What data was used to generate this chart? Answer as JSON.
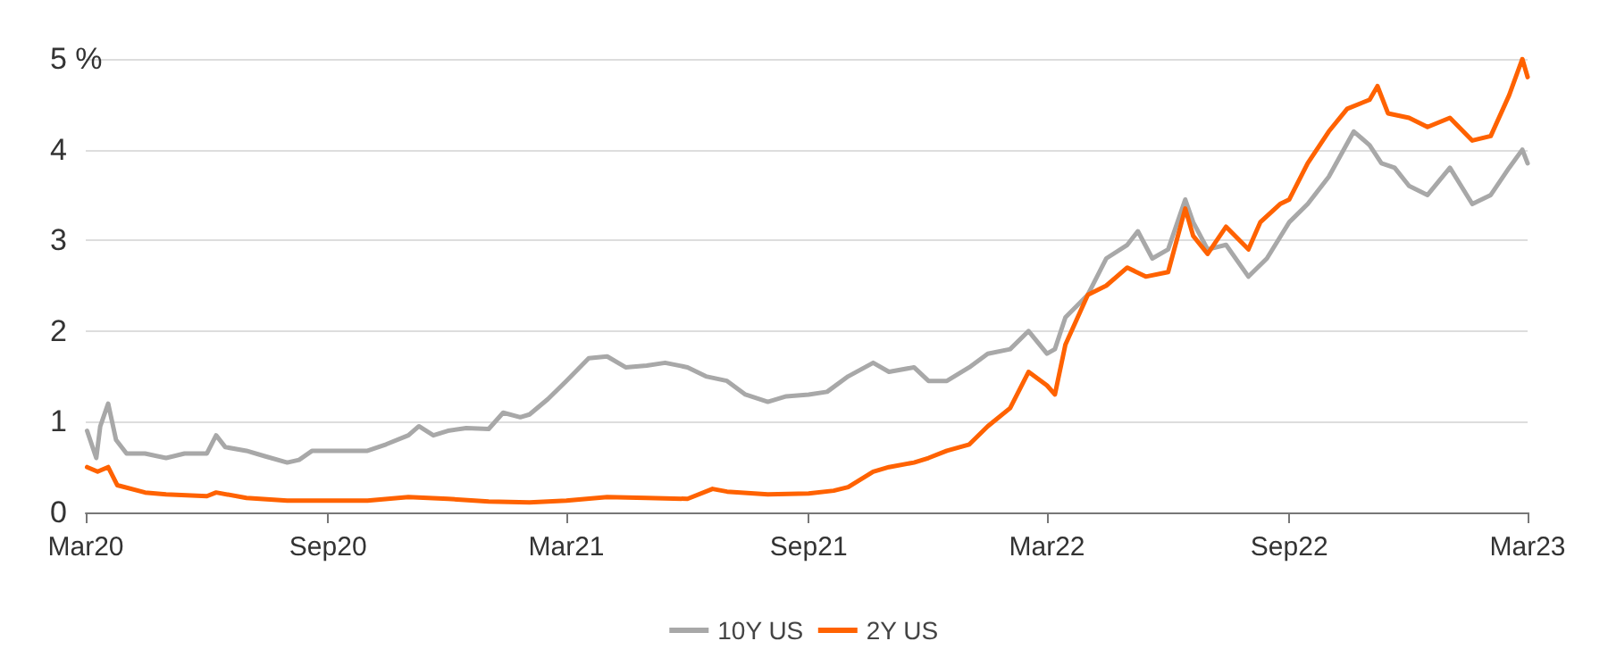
{
  "chart_data": {
    "type": "line",
    "xlim": [
      "2020-03-01",
      "2023-03-01"
    ],
    "xticks": [
      {
        "value": "2020-03-01",
        "label": "Mar20"
      },
      {
        "value": "2020-09-01",
        "label": "Sep20"
      },
      {
        "value": "2021-03-01",
        "label": "Mar21"
      },
      {
        "value": "2021-09-01",
        "label": "Sep21"
      },
      {
        "value": "2022-03-01",
        "label": "Mar22"
      },
      {
        "value": "2022-09-01",
        "label": "Sep22"
      },
      {
        "value": "2023-03-01",
        "label": "Mar23"
      }
    ],
    "ylim": [
      0,
      5
    ],
    "yticks": [
      0,
      1,
      2,
      3,
      4,
      {
        "value": 5,
        "label": "5 %"
      }
    ],
    "grid": "y",
    "legend": "bottom",
    "marker": "none",
    "line_style": "solid",
    "series": [
      {
        "name": "10Y US",
        "color": "#a8a8a8",
        "x": [
          "2020-03-02",
          "2020-03-09",
          "2020-03-12",
          "2020-03-18",
          "2020-03-24",
          "2020-04-01",
          "2020-04-15",
          "2020-05-01",
          "2020-05-15",
          "2020-06-01",
          "2020-06-08",
          "2020-06-15",
          "2020-07-01",
          "2020-07-15",
          "2020-08-01",
          "2020-08-10",
          "2020-08-20",
          "2020-09-01",
          "2020-09-15",
          "2020-10-01",
          "2020-10-15",
          "2020-11-01",
          "2020-11-09",
          "2020-11-20",
          "2020-12-01",
          "2020-12-15",
          "2021-01-01",
          "2021-01-12",
          "2021-01-25",
          "2021-02-01",
          "2021-02-15",
          "2021-03-01",
          "2021-03-18",
          "2021-04-01",
          "2021-04-15",
          "2021-05-01",
          "2021-05-15",
          "2021-06-01",
          "2021-06-15",
          "2021-07-01",
          "2021-07-15",
          "2021-08-01",
          "2021-08-15",
          "2021-09-01",
          "2021-09-15",
          "2021-10-01",
          "2021-10-20",
          "2021-11-01",
          "2021-11-20",
          "2021-12-01",
          "2021-12-15",
          "2022-01-01",
          "2022-01-15",
          "2022-02-01",
          "2022-02-15",
          "2022-03-01",
          "2022-03-07",
          "2022-03-15",
          "2022-04-01",
          "2022-04-15",
          "2022-05-01",
          "2022-05-09",
          "2022-05-20",
          "2022-06-01",
          "2022-06-14",
          "2022-06-20",
          "2022-07-01",
          "2022-07-15",
          "2022-08-01",
          "2022-08-15",
          "2022-09-01",
          "2022-09-15",
          "2022-10-01",
          "2022-10-20",
          "2022-11-01",
          "2022-11-10",
          "2022-11-20",
          "2022-12-01",
          "2022-12-15",
          "2023-01-01",
          "2023-01-18",
          "2023-02-01",
          "2023-02-15",
          "2023-02-25",
          "2023-03-01"
        ],
        "values": [
          0.9,
          0.6,
          0.95,
          1.2,
          0.8,
          0.65,
          0.65,
          0.6,
          0.65,
          0.65,
          0.85,
          0.72,
          0.68,
          0.62,
          0.55,
          0.58,
          0.68,
          0.68,
          0.68,
          0.68,
          0.75,
          0.85,
          0.95,
          0.85,
          0.9,
          0.93,
          0.92,
          1.1,
          1.05,
          1.08,
          1.25,
          1.45,
          1.7,
          1.72,
          1.6,
          1.62,
          1.65,
          1.6,
          1.5,
          1.45,
          1.3,
          1.22,
          1.28,
          1.3,
          1.33,
          1.5,
          1.65,
          1.55,
          1.6,
          1.45,
          1.45,
          1.6,
          1.75,
          1.8,
          2.0,
          1.75,
          1.8,
          2.15,
          2.4,
          2.8,
          2.95,
          3.1,
          2.8,
          2.9,
          3.45,
          3.2,
          2.9,
          2.95,
          2.6,
          2.8,
          3.2,
          3.4,
          3.7,
          4.2,
          4.05,
          3.85,
          3.8,
          3.6,
          3.5,
          3.8,
          3.4,
          3.5,
          3.8,
          4.0,
          3.85
        ]
      },
      {
        "name": "2Y US",
        "color": "#ff6200",
        "x": [
          "2020-03-02",
          "2020-03-10",
          "2020-03-18",
          "2020-03-25",
          "2020-04-15",
          "2020-05-01",
          "2020-06-01",
          "2020-06-08",
          "2020-07-01",
          "2020-08-01",
          "2020-09-01",
          "2020-10-01",
          "2020-11-01",
          "2020-12-01",
          "2021-01-01",
          "2021-02-01",
          "2021-03-01",
          "2021-04-01",
          "2021-05-01",
          "2021-06-01",
          "2021-06-20",
          "2021-07-01",
          "2021-08-01",
          "2021-09-01",
          "2021-09-20",
          "2021-10-01",
          "2021-10-20",
          "2021-11-01",
          "2021-11-20",
          "2021-12-01",
          "2021-12-15",
          "2022-01-01",
          "2022-01-15",
          "2022-02-01",
          "2022-02-15",
          "2022-03-01",
          "2022-03-07",
          "2022-03-15",
          "2022-04-01",
          "2022-04-15",
          "2022-05-01",
          "2022-05-15",
          "2022-06-01",
          "2022-06-14",
          "2022-06-20",
          "2022-07-01",
          "2022-07-15",
          "2022-08-01",
          "2022-08-10",
          "2022-08-25",
          "2022-09-01",
          "2022-09-15",
          "2022-10-01",
          "2022-10-15",
          "2022-11-01",
          "2022-11-07",
          "2022-11-15",
          "2022-12-01",
          "2022-12-15",
          "2023-01-01",
          "2023-01-18",
          "2023-02-01",
          "2023-02-15",
          "2023-02-25",
          "2023-03-01"
        ],
        "values": [
          0.5,
          0.45,
          0.5,
          0.3,
          0.22,
          0.2,
          0.18,
          0.22,
          0.16,
          0.13,
          0.13,
          0.13,
          0.17,
          0.15,
          0.12,
          0.11,
          0.13,
          0.17,
          0.16,
          0.15,
          0.26,
          0.23,
          0.2,
          0.21,
          0.24,
          0.28,
          0.45,
          0.5,
          0.55,
          0.6,
          0.68,
          0.75,
          0.95,
          1.15,
          1.55,
          1.4,
          1.3,
          1.85,
          2.4,
          2.5,
          2.7,
          2.6,
          2.65,
          3.35,
          3.05,
          2.85,
          3.15,
          2.9,
          3.2,
          3.4,
          3.45,
          3.85,
          4.2,
          4.45,
          4.55,
          4.7,
          4.4,
          4.35,
          4.25,
          4.35,
          4.1,
          4.15,
          4.6,
          5.0,
          4.8
        ]
      }
    ]
  }
}
